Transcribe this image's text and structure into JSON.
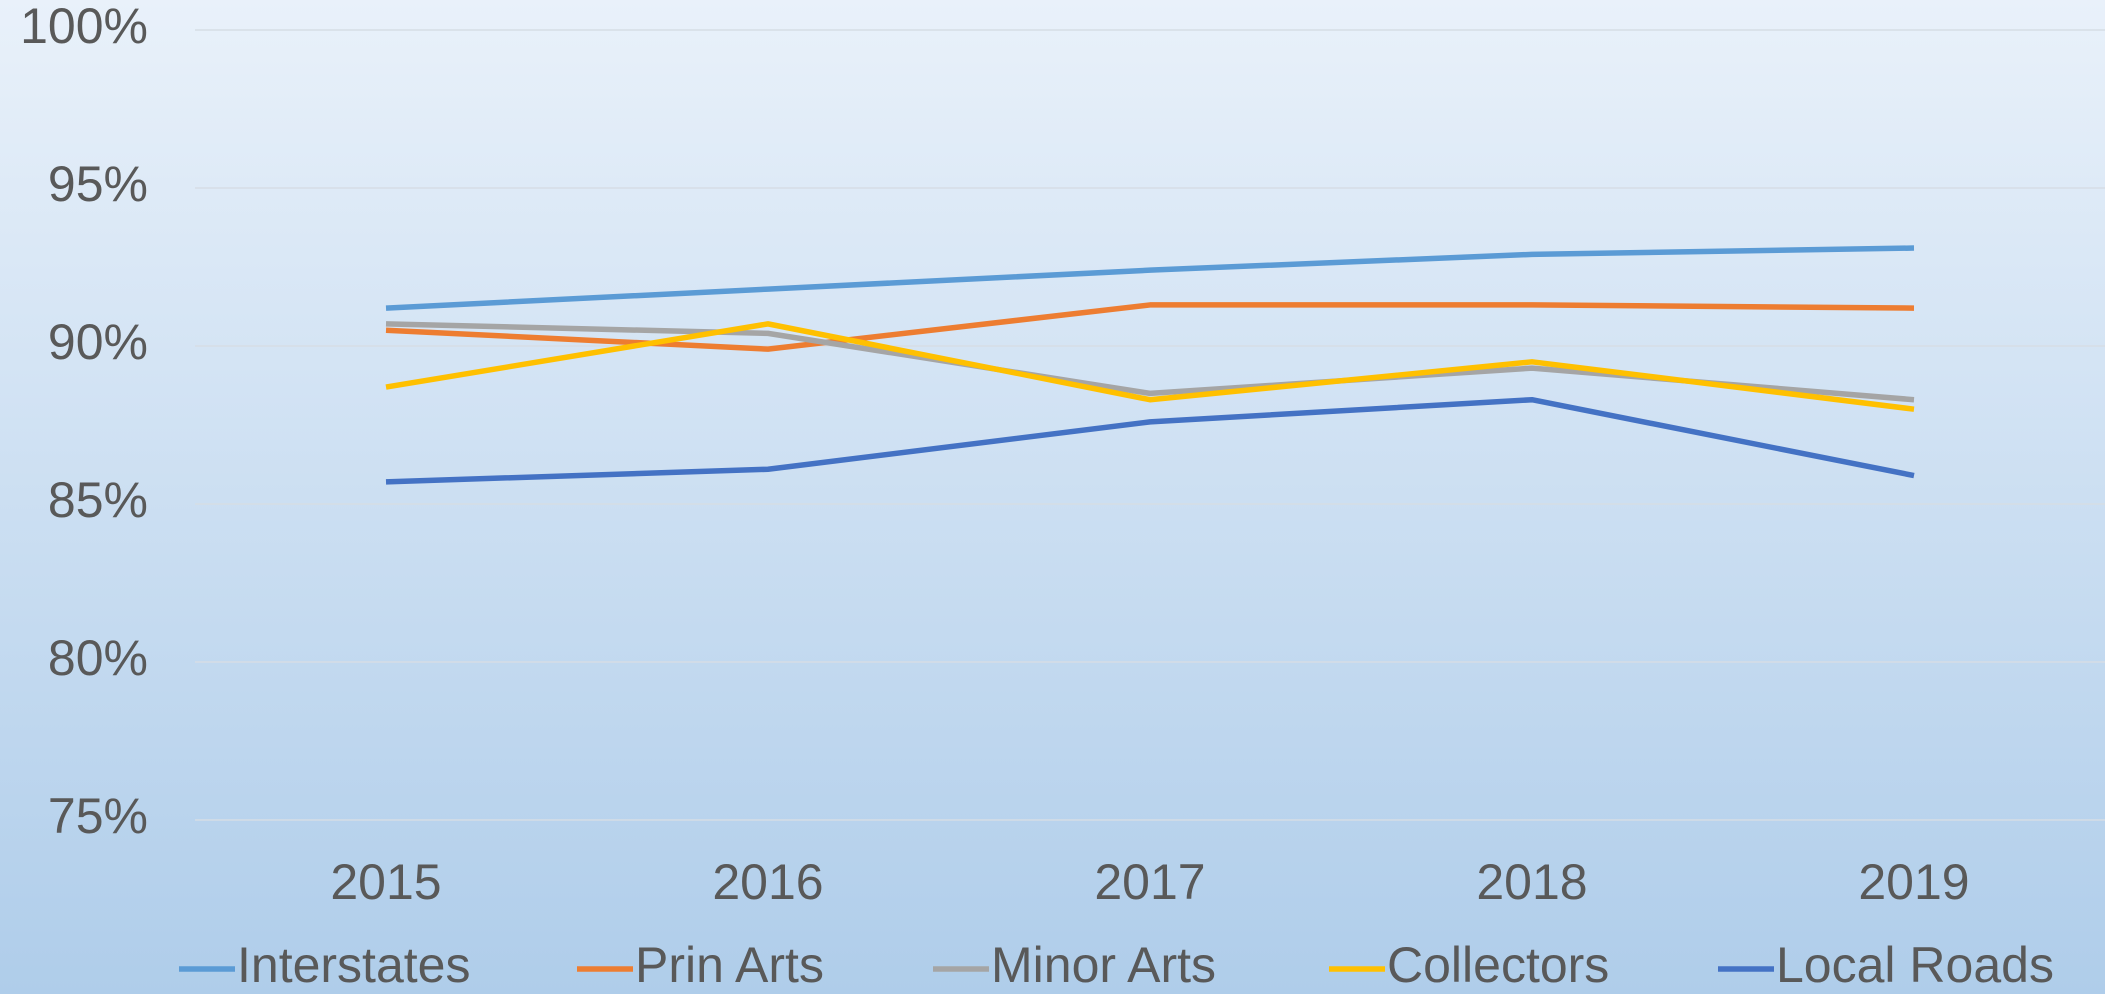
{
  "chart_data": {
    "type": "line",
    "categories": [
      "2015",
      "2016",
      "2017",
      "2018",
      "2019"
    ],
    "series": [
      {
        "name": "Interstates",
        "color": "#5b9bd5",
        "values": [
          91.2,
          91.8,
          92.4,
          92.9,
          93.1
        ]
      },
      {
        "name": "Prin Arts",
        "color": "#ed7d31",
        "values": [
          90.5,
          89.9,
          91.3,
          91.3,
          91.2
        ]
      },
      {
        "name": "Minor Arts",
        "color": "#a5a5a5",
        "values": [
          90.7,
          90.4,
          88.5,
          89.3,
          88.3
        ]
      },
      {
        "name": "Collectors",
        "color": "#ffc000",
        "values": [
          88.7,
          90.7,
          88.3,
          89.5,
          88.0
        ]
      },
      {
        "name": "Local Roads",
        "color": "#4472c4",
        "values": [
          85.7,
          86.1,
          87.6,
          88.3,
          85.9
        ]
      }
    ],
    "ylim": [
      75,
      100
    ],
    "yticks": [
      {
        "value": 75,
        "label": "75%"
      },
      {
        "value": 80,
        "label": "80%"
      },
      {
        "value": 85,
        "label": "85%"
      },
      {
        "value": 90,
        "label": "90%"
      },
      {
        "value": 95,
        "label": "95%"
      },
      {
        "value": 100,
        "label": "100%"
      }
    ],
    "grid": true,
    "legend": "bottom"
  }
}
